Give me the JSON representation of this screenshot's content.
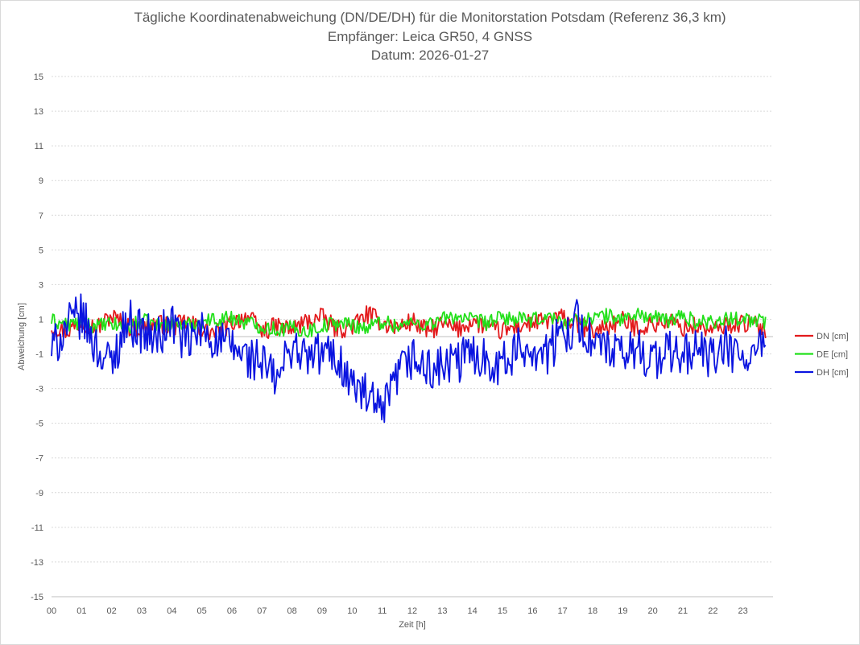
{
  "chart_data": {
    "type": "line",
    "title": "Tägliche Koordinatenabweichung (DN/DE/DH) für die Monitorstation Potsdam (Referenz 36,3 km)",
    "subtitle": "Empfänger: Leica GR50, 4 GNSS",
    "date_label": "Datum: 2026-01-27",
    "xlabel": "Zeit [h]",
    "ylabel": "Abweichung [cm]",
    "xlim": [
      0,
      24
    ],
    "ylim": [
      -15,
      15
    ],
    "x_ticks": [
      "00",
      "01",
      "02",
      "03",
      "04",
      "05",
      "06",
      "07",
      "08",
      "09",
      "10",
      "11",
      "12",
      "13",
      "14",
      "15",
      "16",
      "17",
      "18",
      "19",
      "20",
      "21",
      "22",
      "23"
    ],
    "y_ticks": [
      "15",
      "13",
      "11",
      "9",
      "7",
      "5",
      "3",
      "1",
      "-1",
      "-3",
      "-5",
      "-7",
      "-9",
      "-11",
      "-13",
      "-15"
    ],
    "grid": true,
    "legend_position": "right",
    "x": [
      0.0,
      0.5,
      1.0,
      1.5,
      2.0,
      2.5,
      3.0,
      3.5,
      4.0,
      4.5,
      5.0,
      5.5,
      6.0,
      6.5,
      7.0,
      7.5,
      8.0,
      8.5,
      9.0,
      9.5,
      10.0,
      10.5,
      11.0,
      11.5,
      12.0,
      12.5,
      13.0,
      13.5,
      14.0,
      14.5,
      15.0,
      15.5,
      16.0,
      16.5,
      17.0,
      17.5,
      18.0,
      18.5,
      19.0,
      19.5,
      20.0,
      20.5,
      21.0,
      21.5,
      22.0,
      22.5,
      23.0,
      23.5,
      23.75
    ],
    "series": [
      {
        "name": "DN [cm]",
        "color": "#e31a1c",
        "values": [
          0.6,
          0.3,
          0.9,
          0.5,
          1.2,
          0.6,
          0.4,
          0.8,
          0.5,
          0.9,
          0.4,
          0.2,
          0.8,
          1.2,
          0.3,
          0.6,
          0.4,
          0.9,
          1.1,
          0.4,
          0.6,
          1.3,
          0.8,
          0.5,
          0.9,
          0.3,
          0.7,
          0.4,
          0.9,
          0.5,
          0.3,
          0.6,
          0.8,
          0.9,
          1.1,
          0.7,
          0.3,
          0.6,
          0.9,
          0.5,
          0.7,
          0.9,
          0.5,
          0.6,
          0.3,
          0.7,
          0.8,
          0.6,
          0.4
        ]
      },
      {
        "name": "DE [cm]",
        "color": "#22e01a",
        "values": [
          0.9,
          0.7,
          0.8,
          0.6,
          0.7,
          0.5,
          0.9,
          0.7,
          0.8,
          0.6,
          0.9,
          1.0,
          1.1,
          0.8,
          0.6,
          0.4,
          0.5,
          0.3,
          0.6,
          0.8,
          0.7,
          0.5,
          0.9,
          0.6,
          0.8,
          0.7,
          1.0,
          1.2,
          0.9,
          0.8,
          1.1,
          1.0,
          0.9,
          1.2,
          0.8,
          0.9,
          1.1,
          1.2,
          1.0,
          1.3,
          1.1,
          0.9,
          1.2,
          0.8,
          0.9,
          1.0,
          1.1,
          0.9,
          0.8
        ]
      },
      {
        "name": "DH [cm]",
        "color": "#0a14e0",
        "values": [
          -0.8,
          0.6,
          1.2,
          -0.7,
          -1.6,
          1.0,
          0.3,
          -0.2,
          0.9,
          -0.5,
          0.4,
          -0.3,
          -0.6,
          -1.2,
          -1.5,
          -2.6,
          -0.4,
          -1.3,
          -0.9,
          -1.2,
          -2.8,
          -3.5,
          -4.6,
          -2.3,
          -1.2,
          -2.0,
          -1.8,
          -1.5,
          -0.9,
          -1.3,
          -1.6,
          -0.8,
          -0.6,
          -1.0,
          0.2,
          0.9,
          -0.4,
          -0.8,
          -1.2,
          -0.6,
          -1.4,
          -0.9,
          -1.1,
          -0.7,
          -1.3,
          -0.6,
          -1.5,
          -0.8,
          -1.0
        ]
      }
    ]
  }
}
